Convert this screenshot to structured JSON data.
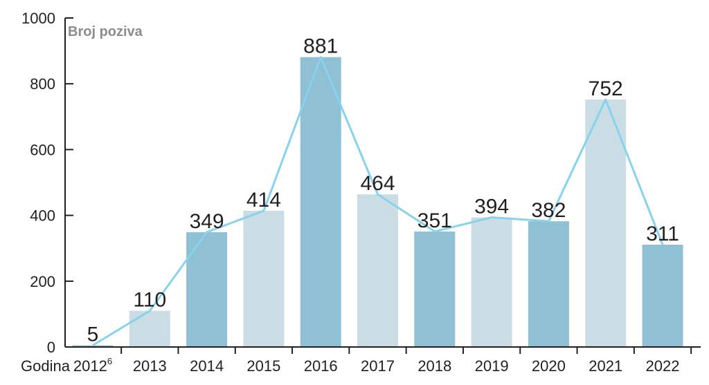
{
  "chart_data": {
    "type": "bar",
    "series_label": "Broj poziva",
    "x_axis_title": "Godina",
    "categories": [
      "2012",
      "2013",
      "2014",
      "2015",
      "2016",
      "2017",
      "2018",
      "2019",
      "2020",
      "2021",
      "2022"
    ],
    "category_superscripts": [
      "6",
      "",
      "",
      "",
      "",
      "",
      "",
      "",
      "",
      "",
      ""
    ],
    "values": [
      5,
      110,
      349,
      414,
      881,
      464,
      351,
      394,
      382,
      752,
      311
    ],
    "bar_shades": [
      "dark",
      "light",
      "dark",
      "light",
      "dark",
      "light",
      "dark",
      "light",
      "dark",
      "light",
      "dark"
    ],
    "ylim": [
      0,
      1000
    ],
    "yticks": [
      0,
      200,
      400,
      600,
      800,
      1000
    ],
    "overlay_line": true,
    "grid": false,
    "colors": {
      "dark_bar": "#8fc0d3",
      "light_bar": "#cbdde4",
      "line": "#86d2ef",
      "axis": "#231f20"
    }
  }
}
